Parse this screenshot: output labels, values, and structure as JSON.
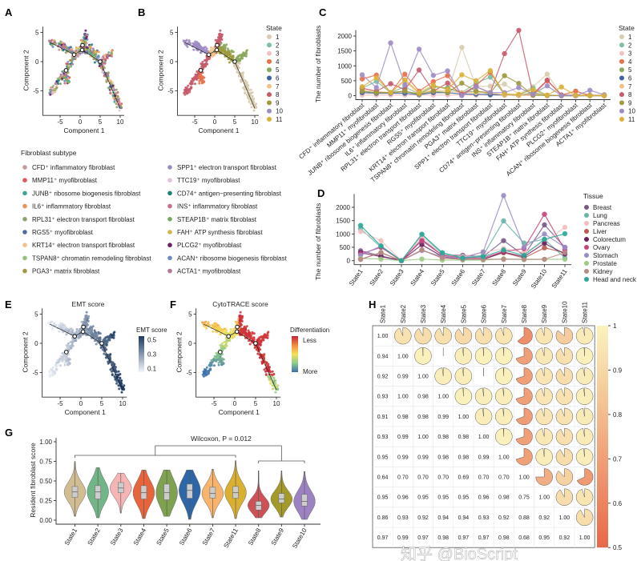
{
  "panel_labels": [
    "A",
    "B",
    "C",
    "D",
    "E",
    "F",
    "G",
    "H"
  ],
  "watermark": "知乎 @BioScript",
  "scatter_axes": {
    "xlabel": "Component 1",
    "ylabel": "Component 2",
    "xticks": [
      "-5",
      "0",
      "5",
      "10"
    ],
    "xtick_values": [
      -5,
      0,
      5,
      10
    ],
    "yticks": [
      "5",
      "0",
      "-5"
    ],
    "ytick_values": [
      5,
      0,
      -5
    ]
  },
  "states": {
    "title": "State",
    "labels": [
      "1",
      "2",
      "3",
      "4",
      "5",
      "6",
      "7",
      "8",
      "9",
      "10",
      "11"
    ],
    "colors": [
      "#D8CCAF",
      "#7DBFA0",
      "#F2BFC0",
      "#E8704A",
      "#8BA85E",
      "#3F64A0",
      "#F2C285",
      "#C65A6B",
      "#9E9A3E",
      "#9E8CC4",
      "#D9B23A"
    ]
  },
  "subtypes": {
    "title": "Fibroblast subtype",
    "labels": [
      "CFD⁺ inflammatory fibroblast",
      "MMP11⁺ myofibroblast",
      "JUNB⁺ ribosome biogenesis fibroblast",
      "IL6⁺ inflammatory fibroblast",
      "RPL31⁺ electron transport fibroblast",
      "RGS5⁺ myofibroblast",
      "KRT14⁺ electron transport fibroblast",
      "TSPAN8⁺ chromatin remodeling fibroblast",
      "PGA3⁺ matrix fibroblast",
      "SPP1⁺ electron transport fibroblast",
      "TTC19⁺ myofibroblast",
      "CD74⁺ antigen−presenting fibroblast",
      "INS⁺ inflammatory fibroblast",
      "STEAP1B⁺ matrix fibroblast",
      "FAH⁺ ATP synthesis fibroblast",
      "PLCG2⁺ myofibroblast",
      "ACAN⁺ ribosome biogenesis fibroblast",
      "ACTA1⁺ myofibroblast"
    ],
    "colors": [
      "#C49A9A",
      "#D9595C",
      "#3FA59B",
      "#E8955A",
      "#8FA36E",
      "#4F6A9E",
      "#F2C28A",
      "#94C27A",
      "#A39A40",
      "#9A8CC2",
      "#E0C0DC",
      "#1E7F7A",
      "#C7708A",
      "#6FAA60",
      "#D9B24A",
      "#6A1F6E",
      "#6C8CBF",
      "#B07A96"
    ]
  },
  "panel_e": {
    "title": "EMT score",
    "legend_title": "EMT score",
    "legend_ticks": [
      "0.5",
      "0.3",
      "0.1"
    ],
    "legend_tick_values": [
      0.5,
      0.3,
      0.1
    ],
    "colors": [
      "#F2F5FA",
      "#1C3A63"
    ]
  },
  "panel_f": {
    "title": "CytoTRACE score",
    "legend_title": "Differentiation",
    "legend_labels": [
      "Less",
      "More"
    ],
    "colors": [
      "#C8203A",
      "#F08A3E",
      "#F6E05A",
      "#8FCB8A",
      "#3E6FB0"
    ]
  },
  "chart_data": [
    {
      "panel": "C",
      "type": "line",
      "ylabel": "The number of fibroblasts",
      "ylim": [
        0,
        2200
      ],
      "yticks": [
        0,
        500,
        1000,
        1500,
        2000
      ],
      "legend_title": "State",
      "legend_position": "right",
      "series": [
        {
          "name": "1",
          "values": [
            100,
            100,
            100,
            100,
            50,
            100,
            100,
            1620,
            300,
            320,
            390,
            50,
            300,
            720,
            10,
            150,
            10,
            10
          ]
        },
        {
          "name": "2",
          "values": [
            250,
            480,
            100,
            300,
            50,
            300,
            250,
            100,
            420,
            620,
            50,
            20,
            250,
            10,
            0,
            0,
            0,
            0
          ]
        },
        {
          "name": "3",
          "values": [
            20,
            20,
            20,
            20,
            20,
            20,
            20,
            20,
            20,
            20,
            20,
            20,
            20,
            20,
            0,
            0,
            0,
            0
          ]
        },
        {
          "name": "4",
          "values": [
            560,
            690,
            100,
            720,
            150,
            470,
            670,
            50,
            330,
            780,
            50,
            20,
            20,
            500,
            20,
            150,
            0,
            0
          ]
        },
        {
          "name": "5",
          "values": [
            150,
            100,
            100,
            150,
            50,
            300,
            250,
            100,
            150,
            50,
            30,
            10,
            100,
            10,
            0,
            0,
            0,
            0
          ]
        },
        {
          "name": "6",
          "values": [
            100,
            80,
            80,
            80,
            30,
            100,
            100,
            50,
            50,
            30,
            20,
            10,
            50,
            0,
            0,
            0,
            0,
            0
          ]
        },
        {
          "name": "7",
          "values": [
            200,
            150,
            100,
            500,
            50,
            200,
            150,
            100,
            100,
            100,
            20,
            10,
            50,
            10,
            0,
            0,
            0,
            0
          ]
        },
        {
          "name": "8",
          "values": [
            250,
            150,
            400,
            200,
            860,
            150,
            420,
            50,
            300,
            100,
            1410,
            2190,
            60,
            520,
            20,
            10,
            10,
            10
          ]
        },
        {
          "name": "9",
          "values": [
            150,
            100,
            100,
            150,
            50,
            150,
            100,
            420,
            150,
            100,
            670,
            410,
            10,
            10,
            0,
            0,
            0,
            0
          ]
        },
        {
          "name": "10",
          "values": [
            700,
            270,
            1770,
            370,
            1560,
            680,
            830,
            0,
            300,
            100,
            100,
            270,
            50,
            330,
            0,
            0,
            180,
            30
          ]
        },
        {
          "name": "11",
          "values": [
            300,
            600,
            100,
            530,
            100,
            350,
            200,
            700,
            500,
            840,
            50,
            40,
            200,
            10,
            290,
            10,
            0,
            0
          ]
        }
      ]
    },
    {
      "panel": "D",
      "type": "line",
      "categories": [
        "State1",
        "State2",
        "State3",
        "State4",
        "State5",
        "State6",
        "State7",
        "State8",
        "State9",
        "State10",
        "State11"
      ],
      "ylabel": "The number of fibroblasts",
      "ylim": [
        0,
        2500
      ],
      "yticks": [
        0,
        500,
        1000,
        1500,
        2000
      ],
      "legend_title": "Tissue",
      "legend_position": "right",
      "series": [
        {
          "name": "Breast",
          "color": "#7A5A86",
          "values": [
            370,
            180,
            0,
            800,
            200,
            200,
            150,
            750,
            200,
            1340,
            500
          ]
        },
        {
          "name": "Lung",
          "color": "#6AB5AA",
          "values": [
            1200,
            500,
            0,
            980,
            250,
            100,
            200,
            1490,
            660,
            800,
            100
          ]
        },
        {
          "name": "Pancreas",
          "color": "#F2BFBE",
          "values": [
            1090,
            750,
            0,
            900,
            200,
            150,
            300,
            450,
            300,
            700,
            1250
          ]
        },
        {
          "name": "Liver",
          "color": "#C05A50",
          "values": [
            50,
            300,
            0,
            400,
            100,
            50,
            50,
            300,
            100,
            480,
            300
          ]
        },
        {
          "name": "Colorectum",
          "color": "#6A1F5E",
          "values": [
            300,
            150,
            0,
            600,
            150,
            50,
            50,
            320,
            150,
            650,
            250
          ]
        },
        {
          "name": "Ovary",
          "color": "#C8447E",
          "values": [
            250,
            500,
            0,
            750,
            200,
            100,
            100,
            350,
            450,
            1740,
            400
          ]
        },
        {
          "name": "Stomach",
          "color": "#9A8CC4",
          "values": [
            200,
            550,
            0,
            380,
            150,
            100,
            330,
            2440,
            500,
            1000,
            500
          ]
        },
        {
          "name": "Prostate",
          "color": "#9CCB86",
          "values": [
            80,
            60,
            0,
            60,
            20,
            20,
            20,
            70,
            40,
            50,
            50
          ]
        },
        {
          "name": "Kidney",
          "color": "#B88A86",
          "values": [
            50,
            300,
            0,
            400,
            100,
            50,
            50,
            50,
            50,
            50,
            300
          ]
        },
        {
          "name": "Head and neck",
          "color": "#2AA898",
          "values": [
            1320,
            550,
            0,
            990,
            300,
            100,
            150,
            400,
            200,
            800,
            1010
          ]
        }
      ]
    },
    {
      "panel": "G",
      "type": "violin",
      "ylabel": "Resident fibroblast score",
      "ylim": [
        0,
        1
      ],
      "yticks": [
        "0.00",
        "0.25",
        "0.50",
        "0.75",
        "1.00"
      ],
      "categories": [
        "State1",
        "State2",
        "State3",
        "State4",
        "State5",
        "State6",
        "State7",
        "State11",
        "State8",
        "State9",
        "State10"
      ],
      "colors": [
        "#D2BC92",
        "#72B586",
        "#F5B5B5",
        "#E8643A",
        "#7FA250",
        "#2E66A8",
        "#F7B46A",
        "#D9B030",
        "#CC5258",
        "#A39A2A",
        "#9C82C2"
      ],
      "median": [
        0.36,
        0.36,
        0.41,
        0.35,
        0.35,
        0.38,
        0.34,
        0.35,
        0.19,
        0.27,
        0.24
      ],
      "q1": [
        0.29,
        0.27,
        0.35,
        0.27,
        0.26,
        0.28,
        0.28,
        0.28,
        0.13,
        0.22,
        0.18
      ],
      "q3": [
        0.43,
        0.44,
        0.48,
        0.44,
        0.46,
        0.46,
        0.42,
        0.43,
        0.24,
        0.34,
        0.33
      ],
      "min": [
        0.05,
        0.03,
        0.09,
        0.02,
        0.05,
        0.01,
        0.03,
        0.02,
        0.03,
        0.04,
        0.01
      ],
      "max": [
        0.75,
        0.67,
        0.6,
        0.64,
        0.64,
        0.64,
        0.65,
        0.76,
        0.63,
        0.63,
        0.62
      ],
      "annotation": "Wilcoxon, P = 0.012"
    },
    {
      "panel": "H",
      "type": "heatmap",
      "labels": [
        "State1",
        "State2",
        "State3",
        "State4",
        "State5",
        "State6",
        "State7",
        "State8",
        "State9",
        "State10",
        "State11"
      ],
      "lower_triangle": [
        [
          1.0
        ],
        [
          0.94,
          1.0
        ],
        [
          0.92,
          0.99,
          1.0
        ],
        [
          0.93,
          1.0,
          0.98,
          1.0
        ],
        [
          0.91,
          0.98,
          0.98,
          0.99,
          1.0
        ],
        [
          0.93,
          0.99,
          1.0,
          0.98,
          0.98,
          1.0
        ],
        [
          0.95,
          0.99,
          0.99,
          0.98,
          0.98,
          0.99,
          1.0
        ],
        [
          0.64,
          0.7,
          0.7,
          0.7,
          0.69,
          0.7,
          0.7,
          1.0
        ],
        [
          0.95,
          0.96,
          0.95,
          0.95,
          0.95,
          0.96,
          0.98,
          0.75,
          1.0
        ],
        [
          0.86,
          0.93,
          0.92,
          0.94,
          0.94,
          0.93,
          0.92,
          0.88,
          0.92,
          1.0
        ],
        [
          0.97,
          0.99,
          0.97,
          0.98,
          0.97,
          0.97,
          0.98,
          0.68,
          0.95,
          0.92,
          1.0
        ]
      ],
      "colorbar_range": [
        0.5,
        1
      ],
      "colorbar_ticks": [
        "1",
        "0.9",
        "0.8",
        "0.7",
        "0.6",
        "0.5"
      ],
      "colors": [
        "#E8684A",
        "#FAF3BE"
      ]
    }
  ]
}
